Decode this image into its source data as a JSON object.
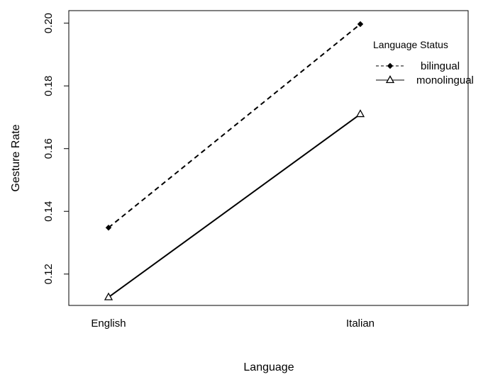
{
  "chart_data": {
    "type": "line",
    "title": "",
    "xlabel": "Language",
    "ylabel": "Gesture Rate",
    "categories": [
      "English",
      "Italian"
    ],
    "ylim": [
      0.11,
      0.204
    ],
    "yticks": [
      "0.12",
      "0.14",
      "0.16",
      "0.18",
      "0.20"
    ],
    "grid": false,
    "legend": {
      "title": "Language Status",
      "placement": "top-right",
      "entries": [
        "bilingual",
        "monolingual"
      ]
    },
    "series": [
      {
        "name": "bilingual",
        "values": [
          0.1348,
          0.1997
        ],
        "line_style": "dashed",
        "marker": "filled-diamond",
        "color": "#000000"
      },
      {
        "name": "monolingual",
        "values": [
          0.1126,
          0.171
        ],
        "line_style": "solid",
        "marker": "open-triangle",
        "color": "#000000"
      }
    ]
  }
}
